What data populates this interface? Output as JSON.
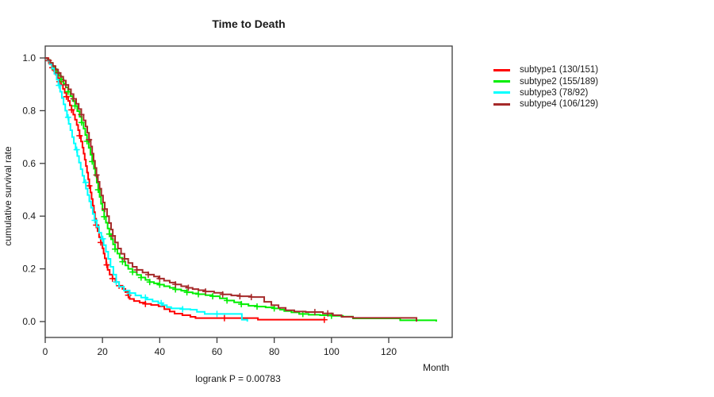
{
  "chart_data": {
    "type": "line",
    "subtype": "kaplan-meier-step-curves",
    "title": "Time to Death",
    "xlabel": "Month",
    "ylabel": "cumulative survival rate",
    "annotation": "logrank P = 0.00783",
    "x_ticks": [
      0,
      20,
      40,
      60,
      80,
      100,
      120
    ],
    "y_tick_labels": [
      "0.0",
      "0.2",
      "0.4",
      "0.6",
      "0.8",
      "1.0"
    ],
    "y_tick_values": [
      0,
      0.2,
      0.4,
      0.6,
      0.8,
      1.0
    ],
    "xlim": [
      0,
      142
    ],
    "ylim": [
      0,
      1.0
    ],
    "grid": false,
    "legend_position": "right-outside",
    "frame_color": "#3c3c3c",
    "text_color": "#1a1a1a",
    "series": [
      {
        "name": "subtype1 (130/151)",
        "label": "subtype1",
        "events": "130/151",
        "color": "#FF0000",
        "steps": [
          [
            0,
            1
          ],
          [
            0.7,
            0.99
          ],
          [
            1.5,
            0.977
          ],
          [
            2.3,
            0.963
          ],
          [
            3,
            0.95
          ],
          [
            3.7,
            0.937
          ],
          [
            4.4,
            0.923
          ],
          [
            5,
            0.91
          ],
          [
            5.6,
            0.897
          ],
          [
            6.2,
            0.883
          ],
          [
            6.8,
            0.868
          ],
          [
            7.4,
            0.853
          ],
          [
            8,
            0.837
          ],
          [
            8.6,
            0.82
          ],
          [
            9.2,
            0.803
          ],
          [
            9.8,
            0.785
          ],
          [
            10.4,
            0.766
          ],
          [
            11,
            0.746
          ],
          [
            11.5,
            0.726
          ],
          [
            12,
            0.705
          ],
          [
            12.5,
            0.683
          ],
          [
            13,
            0.66
          ],
          [
            13.4,
            0.637
          ],
          [
            13.8,
            0.614
          ],
          [
            14.2,
            0.59
          ],
          [
            14.6,
            0.565
          ],
          [
            15,
            0.54
          ],
          [
            15.4,
            0.515
          ],
          [
            15.8,
            0.49
          ],
          [
            16.2,
            0.465
          ],
          [
            16.6,
            0.44
          ],
          [
            17,
            0.415
          ],
          [
            17.4,
            0.39
          ],
          [
            17.8,
            0.366
          ],
          [
            18.3,
            0.343
          ],
          [
            18.8,
            0.32
          ],
          [
            19.4,
            0.3
          ],
          [
            20,
            0.278
          ],
          [
            20.4,
            0.258
          ],
          [
            20.8,
            0.24
          ],
          [
            21.3,
            0.215
          ],
          [
            21.8,
            0.196
          ],
          [
            22.5,
            0.178
          ],
          [
            23.5,
            0.163
          ],
          [
            24.5,
            0.15
          ],
          [
            25.8,
            0.136
          ],
          [
            27,
            0.124
          ],
          [
            28,
            0.112
          ],
          [
            29,
            0.1
          ],
          [
            29.5,
            0.086
          ],
          [
            31,
            0.078
          ],
          [
            33,
            0.072
          ],
          [
            35,
            0.067
          ],
          [
            37,
            0.063
          ],
          [
            39.6,
            0.058
          ],
          [
            41.6,
            0.047
          ],
          [
            43.5,
            0.038
          ],
          [
            45.2,
            0.03
          ],
          [
            47.9,
            0.024
          ],
          [
            50.7,
            0.018
          ],
          [
            52.5,
            0.013
          ],
          [
            74.3,
            0.007
          ],
          [
            97.5,
            0.007
          ]
        ],
        "censor_months": [
          1.2,
          2.5,
          5,
          7.4,
          9.2,
          12,
          15.4,
          17.8,
          19.4,
          21.5,
          23.5,
          25.8,
          29,
          35,
          62.6,
          97.5
        ]
      },
      {
        "name": "subtype2 (155/189)",
        "label": "subtype2",
        "events": "155/189",
        "color": "#00EE00",
        "steps": [
          [
            0,
            1
          ],
          [
            0.8,
            0.993
          ],
          [
            1.6,
            0.982
          ],
          [
            2.4,
            0.97
          ],
          [
            3.2,
            0.958
          ],
          [
            4,
            0.945
          ],
          [
            4.8,
            0.932
          ],
          [
            5.6,
            0.918
          ],
          [
            6.4,
            0.903
          ],
          [
            7.2,
            0.888
          ],
          [
            8,
            0.872
          ],
          [
            8.8,
            0.855
          ],
          [
            9.6,
            0.837
          ],
          [
            10.4,
            0.818
          ],
          [
            11.2,
            0.798
          ],
          [
            12,
            0.777
          ],
          [
            12.7,
            0.755
          ],
          [
            13.4,
            0.732
          ],
          [
            14,
            0.708
          ],
          [
            14.6,
            0.684
          ],
          [
            15.2,
            0.659
          ],
          [
            15.8,
            0.633
          ],
          [
            16.4,
            0.607
          ],
          [
            17,
            0.58
          ],
          [
            17.5,
            0.553
          ],
          [
            18,
            0.527
          ],
          [
            18.5,
            0.5
          ],
          [
            19,
            0.473
          ],
          [
            19.5,
            0.447
          ],
          [
            20,
            0.422
          ],
          [
            20.6,
            0.398
          ],
          [
            21.2,
            0.375
          ],
          [
            21.8,
            0.353
          ],
          [
            22.4,
            0.332
          ],
          [
            23,
            0.312
          ],
          [
            23.7,
            0.293
          ],
          [
            24.4,
            0.275
          ],
          [
            25.2,
            0.258
          ],
          [
            26,
            0.242
          ],
          [
            27,
            0.227
          ],
          [
            28,
            0.213
          ],
          [
            29,
            0.2
          ],
          [
            30.5,
            0.188
          ],
          [
            32,
            0.177
          ],
          [
            33.5,
            0.167
          ],
          [
            35,
            0.158
          ],
          [
            36.5,
            0.15
          ],
          [
            38,
            0.145
          ],
          [
            39.6,
            0.14
          ],
          [
            41.5,
            0.134
          ],
          [
            43.5,
            0.128
          ],
          [
            45.5,
            0.122
          ],
          [
            47.5,
            0.117
          ],
          [
            49.5,
            0.111
          ],
          [
            51.5,
            0.107
          ],
          [
            53.5,
            0.104
          ],
          [
            56,
            0.1
          ],
          [
            58.5,
            0.096
          ],
          [
            61,
            0.088
          ],
          [
            63.5,
            0.08
          ],
          [
            66,
            0.073
          ],
          [
            68.5,
            0.066
          ],
          [
            71,
            0.06
          ],
          [
            74,
            0.057
          ],
          [
            77,
            0.054
          ],
          [
            80,
            0.05
          ],
          [
            82,
            0.045
          ],
          [
            83.5,
            0.04
          ],
          [
            86,
            0.035
          ],
          [
            88.7,
            0.029
          ],
          [
            92,
            0.026
          ],
          [
            96,
            0.024
          ],
          [
            100,
            0.022
          ],
          [
            104,
            0.019
          ],
          [
            107.5,
            0.012
          ],
          [
            124,
            0.005
          ],
          [
            136.4,
            0.005
          ],
          [
            136.6,
            0
          ]
        ],
        "censor_months": [
          3.2,
          5.6,
          8,
          10.4,
          12.7,
          14.6,
          16.4,
          18.5,
          20.6,
          22.4,
          24.4,
          27,
          30.5,
          33.5,
          36.5,
          40,
          45.5,
          49.5,
          53.5,
          58.5,
          63.5,
          68.5,
          74,
          80,
          90,
          100
        ]
      },
      {
        "name": "subtype3 (78/92)",
        "label": "subtype3",
        "events": "78/92",
        "color": "#00FFFF",
        "steps": [
          [
            0,
            1
          ],
          [
            0.8,
            0.99
          ],
          [
            1.6,
            0.976
          ],
          [
            2.4,
            0.96
          ],
          [
            3.2,
            0.94
          ],
          [
            4,
            0.918
          ],
          [
            4.6,
            0.896
          ],
          [
            5.2,
            0.872
          ],
          [
            5.8,
            0.848
          ],
          [
            6.4,
            0.824
          ],
          [
            7,
            0.8
          ],
          [
            7.6,
            0.775
          ],
          [
            8.2,
            0.75
          ],
          [
            8.8,
            0.726
          ],
          [
            9.4,
            0.7
          ],
          [
            10,
            0.676
          ],
          [
            10.6,
            0.652
          ],
          [
            11.2,
            0.628
          ],
          [
            11.8,
            0.603
          ],
          [
            12.4,
            0.578
          ],
          [
            13,
            0.553
          ],
          [
            13.6,
            0.528
          ],
          [
            14.2,
            0.504
          ],
          [
            14.8,
            0.48
          ],
          [
            15.4,
            0.456
          ],
          [
            16,
            0.432
          ],
          [
            16.6,
            0.408
          ],
          [
            17.2,
            0.384
          ],
          [
            18,
            0.36
          ],
          [
            18.8,
            0.337
          ],
          [
            19.6,
            0.314
          ],
          [
            20.4,
            0.29
          ],
          [
            21.2,
            0.265
          ],
          [
            22,
            0.238
          ],
          [
            22.8,
            0.208
          ],
          [
            23.8,
            0.178
          ],
          [
            24.8,
            0.15
          ],
          [
            25.8,
            0.132
          ],
          [
            27.5,
            0.118
          ],
          [
            29.5,
            0.108
          ],
          [
            31.5,
            0.099
          ],
          [
            33.5,
            0.091
          ],
          [
            35.5,
            0.084
          ],
          [
            37.5,
            0.077
          ],
          [
            39.5,
            0.07
          ],
          [
            41,
            0.062
          ],
          [
            42.5,
            0.055
          ],
          [
            44,
            0.05
          ],
          [
            48,
            0.047
          ],
          [
            50.7,
            0.045
          ],
          [
            53,
            0.037
          ],
          [
            55.7,
            0.029
          ],
          [
            68.7,
            0.007
          ],
          [
            70.4,
            0.007
          ],
          [
            70.6,
            0
          ]
        ],
        "censor_months": [
          4.8,
          8,
          11,
          14.1,
          17.3,
          20.1,
          24.8,
          29.5,
          35,
          40.5,
          48,
          60
        ]
      },
      {
        "name": "subtype4 (106/129)",
        "label": "subtype4",
        "events": "106/129",
        "color": "#A52A2A",
        "steps": [
          [
            0,
            1
          ],
          [
            0.9,
            0.992
          ],
          [
            1.8,
            0.981
          ],
          [
            2.7,
            0.969
          ],
          [
            3.6,
            0.956
          ],
          [
            4.5,
            0.943
          ],
          [
            5.4,
            0.929
          ],
          [
            6.3,
            0.914
          ],
          [
            7.2,
            0.898
          ],
          [
            8.1,
            0.881
          ],
          [
            9,
            0.863
          ],
          [
            9.9,
            0.845
          ],
          [
            10.8,
            0.826
          ],
          [
            11.7,
            0.806
          ],
          [
            12.6,
            0.785
          ],
          [
            13.4,
            0.763
          ],
          [
            14.1,
            0.74
          ],
          [
            14.7,
            0.716
          ],
          [
            15.3,
            0.69
          ],
          [
            15.9,
            0.664
          ],
          [
            16.4,
            0.637
          ],
          [
            16.9,
            0.61
          ],
          [
            17.4,
            0.583
          ],
          [
            17.9,
            0.556
          ],
          [
            18.4,
            0.53
          ],
          [
            19,
            0.504
          ],
          [
            19.6,
            0.478
          ],
          [
            20.2,
            0.452
          ],
          [
            20.8,
            0.427
          ],
          [
            21.6,
            0.4
          ],
          [
            22.3,
            0.374
          ],
          [
            23,
            0.349
          ],
          [
            23.6,
            0.325
          ],
          [
            24.4,
            0.3
          ],
          [
            25.4,
            0.277
          ],
          [
            26.5,
            0.257
          ],
          [
            27.7,
            0.238
          ],
          [
            29,
            0.222
          ],
          [
            30.5,
            0.208
          ],
          [
            32,
            0.196
          ],
          [
            34,
            0.186
          ],
          [
            36,
            0.178
          ],
          [
            38,
            0.171
          ],
          [
            39.6,
            0.163
          ],
          [
            41.5,
            0.155
          ],
          [
            43.5,
            0.148
          ],
          [
            45.5,
            0.141
          ],
          [
            47.5,
            0.134
          ],
          [
            49.5,
            0.128
          ],
          [
            51.5,
            0.123
          ],
          [
            53.5,
            0.119
          ],
          [
            56,
            0.114
          ],
          [
            59,
            0.109
          ],
          [
            62,
            0.103
          ],
          [
            65,
            0.099
          ],
          [
            68,
            0.096
          ],
          [
            72,
            0.093
          ],
          [
            76.5,
            0.075
          ],
          [
            79,
            0.062
          ],
          [
            81.5,
            0.052
          ],
          [
            84,
            0.043
          ],
          [
            87,
            0.038
          ],
          [
            91,
            0.036
          ],
          [
            97,
            0.031
          ],
          [
            100.5,
            0.024
          ],
          [
            103.5,
            0.018
          ],
          [
            107.5,
            0.014
          ],
          [
            129.4,
            0.014
          ],
          [
            129.7,
            0
          ]
        ],
        "censor_months": [
          4.5,
          7.2,
          9.9,
          12.6,
          15.3,
          17.9,
          20.8,
          23.6,
          27.7,
          32,
          36,
          40,
          45.5,
          50,
          56,
          62,
          68,
          72,
          94.2,
          98.7
        ]
      }
    ]
  }
}
